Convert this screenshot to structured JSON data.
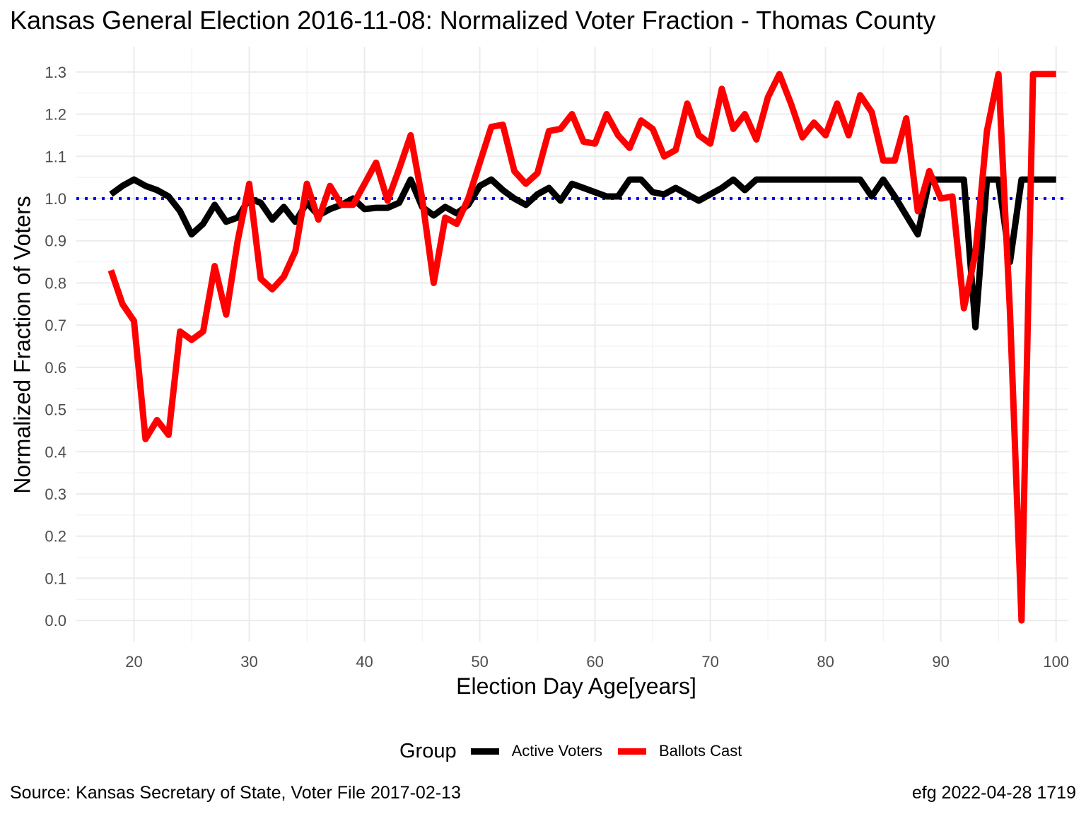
{
  "chart_data": {
    "type": "line",
    "title": "Kansas General Election 2016-11-08:  Normalized Voter Fraction - Thomas County",
    "xlabel": "Election Day Age[years]",
    "ylabel": "Normalized Fraction of Voters",
    "xlim": [
      15,
      101
    ],
    "ylim": [
      -0.05,
      1.36
    ],
    "x_ticks": [
      20,
      30,
      40,
      50,
      60,
      70,
      80,
      90,
      100
    ],
    "y_ticks": [
      0.0,
      0.1,
      0.2,
      0.3,
      0.4,
      0.5,
      0.6,
      0.7,
      0.8,
      0.9,
      1.0,
      1.1,
      1.2,
      1.3
    ],
    "x_tick_labels": [
      "20",
      "30",
      "40",
      "50",
      "60",
      "70",
      "80",
      "90",
      "100"
    ],
    "y_tick_labels": [
      "0.0",
      "0.1",
      "0.2",
      "0.3",
      "0.4",
      "0.5",
      "0.6",
      "0.7",
      "0.8",
      "0.9",
      "1.0",
      "1.1",
      "1.2",
      "1.3"
    ],
    "grid": true,
    "reference_line": {
      "y": 1.0,
      "color": "#0000ff",
      "style": "dotted"
    },
    "legend": {
      "title": "Group",
      "position": "bottom"
    },
    "series": [
      {
        "name": "Active Voters",
        "color": "#000000",
        "x": [
          18,
          19,
          20,
          21,
          22,
          23,
          24,
          25,
          26,
          27,
          28,
          29,
          30,
          31,
          32,
          33,
          34,
          35,
          36,
          37,
          38,
          39,
          40,
          41,
          42,
          43,
          44,
          45,
          46,
          47,
          48,
          49,
          50,
          51,
          52,
          53,
          54,
          55,
          56,
          57,
          58,
          59,
          60,
          61,
          62,
          63,
          64,
          65,
          66,
          67,
          68,
          69,
          70,
          71,
          72,
          73,
          74,
          75,
          76,
          77,
          78,
          79,
          80,
          81,
          82,
          83,
          84,
          85,
          86,
          87,
          88,
          89,
          90,
          91,
          92,
          93,
          94,
          95,
          96,
          97,
          98,
          99,
          100
        ],
        "y": [
          1.01,
          1.03,
          1.045,
          1.03,
          1.02,
          1.005,
          0.97,
          0.915,
          0.94,
          0.985,
          0.945,
          0.955,
          1.0,
          0.99,
          0.95,
          0.98,
          0.945,
          0.99,
          0.96,
          0.975,
          0.985,
          1.0,
          0.975,
          0.978,
          0.978,
          0.99,
          1.045,
          0.98,
          0.96,
          0.98,
          0.965,
          0.985,
          1.03,
          1.045,
          1.02,
          1.0,
          0.985,
          1.01,
          1.025,
          0.995,
          1.035,
          1.025,
          1.015,
          1.005,
          1.005,
          1.045,
          1.045,
          1.015,
          1.01,
          1.025,
          1.01,
          0.995,
          1.01,
          1.025,
          1.045,
          1.02,
          1.045,
          1.045,
          1.045,
          1.045,
          1.045,
          1.045,
          1.045,
          1.045,
          1.045,
          1.045,
          1.005,
          1.045,
          1.005,
          0.96,
          0.915,
          1.045,
          1.045,
          1.045,
          1.045,
          0.695,
          1.045,
          1.045,
          0.85,
          1.045,
          1.045,
          1.045,
          1.045
        ]
      },
      {
        "name": "Ballots Cast",
        "color": "#ff0000",
        "x": [
          18,
          19,
          20,
          21,
          22,
          23,
          24,
          25,
          26,
          27,
          28,
          29,
          30,
          31,
          32,
          33,
          34,
          35,
          36,
          37,
          38,
          39,
          40,
          41,
          42,
          43,
          44,
          45,
          46,
          47,
          48,
          49,
          50,
          51,
          52,
          53,
          54,
          55,
          56,
          57,
          58,
          59,
          60,
          61,
          62,
          63,
          64,
          65,
          66,
          67,
          68,
          69,
          70,
          71,
          72,
          73,
          74,
          75,
          76,
          77,
          78,
          79,
          80,
          81,
          82,
          83,
          84,
          85,
          86,
          87,
          88,
          89,
          90,
          91,
          92,
          93,
          94,
          95,
          96,
          97,
          98,
          99,
          100
        ],
        "y": [
          0.83,
          0.75,
          0.71,
          0.43,
          0.475,
          0.44,
          0.685,
          0.665,
          0.685,
          0.84,
          0.725,
          0.9,
          1.035,
          0.81,
          0.785,
          0.815,
          0.875,
          1.035,
          0.95,
          1.03,
          0.985,
          0.985,
          1.035,
          1.085,
          0.995,
          1.07,
          1.15,
          1.0,
          0.8,
          0.955,
          0.94,
          1.0,
          1.085,
          1.17,
          1.175,
          1.065,
          1.035,
          1.06,
          1.16,
          1.165,
          1.2,
          1.135,
          1.13,
          1.2,
          1.15,
          1.12,
          1.185,
          1.165,
          1.1,
          1.115,
          1.225,
          1.15,
          1.13,
          1.26,
          1.165,
          1.2,
          1.14,
          1.24,
          1.295,
          1.225,
          1.145,
          1.18,
          1.15,
          1.225,
          1.15,
          1.245,
          1.205,
          1.09,
          1.09,
          1.19,
          0.97,
          1.065,
          1.0,
          1.005,
          0.74,
          0.87,
          1.16,
          1.295,
          0.73,
          0.0,
          1.295,
          1.295,
          1.295
        ]
      }
    ]
  },
  "caption": {
    "left": "Source:  Kansas Secretary of State, Voter File  2017-02-13",
    "right": "efg 2022-04-28 1719"
  }
}
